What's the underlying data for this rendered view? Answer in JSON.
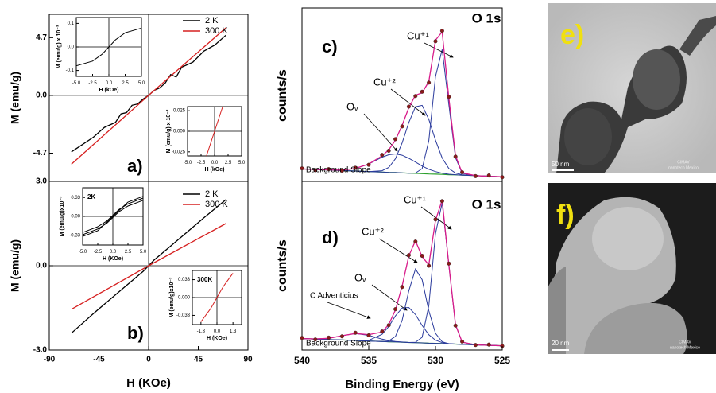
{
  "chart_data": [
    {
      "type": "line",
      "label": "a)",
      "ylabel": "M (emu/g)",
      "xlim": [
        -90,
        90
      ],
      "ylim": [
        -7,
        6.6
      ],
      "yticks": [
        4.7,
        {
          "value": 0,
          "label": "0.0"
        },
        -4.7
      ],
      "legend": "upper right",
      "series": [
        {
          "name": "2 K",
          "color": "#000000",
          "x": [
            -70,
            -60,
            -50,
            -40,
            -30,
            -25,
            -20,
            -15,
            -10,
            -5,
            0,
            5,
            10,
            15,
            20,
            25,
            30,
            40,
            50,
            60,
            70
          ],
          "values": [
            -4.6,
            -4.0,
            -3.4,
            -2.6,
            -2.2,
            -1.5,
            -1.4,
            -0.8,
            -0.7,
            -0.3,
            0,
            0.4,
            0.6,
            1.0,
            1.7,
            1.5,
            2.3,
            2.7,
            3.6,
            4.1,
            4.9
          ]
        },
        {
          "name": "300 K",
          "color": "#d62020",
          "x": [
            -70,
            0,
            70
          ],
          "values": [
            -5.6,
            0,
            5.5
          ]
        }
      ]
    },
    {
      "type": "line",
      "label": "b)",
      "ylabel": "M (emu/g)",
      "xlabel": "H (KOe)",
      "xlim": [
        -90,
        90
      ],
      "ylim": [
        -3,
        3
      ],
      "xticks": [
        -90,
        -45,
        0,
        45,
        90
      ],
      "yticks": [
        {
          "value": 3,
          "label": "3.0"
        },
        {
          "value": 0,
          "label": "0.0"
        },
        {
          "value": -3,
          "label": "-3.0"
        }
      ],
      "legend": "upper right",
      "series": [
        {
          "name": "2 K",
          "color": "#000000",
          "x": [
            -70,
            -50,
            -20,
            -5,
            0,
            5,
            20,
            50,
            70
          ],
          "values": [
            -2.4,
            -1.7,
            -0.7,
            -0.2,
            0,
            0.2,
            0.7,
            1.7,
            2.35
          ]
        },
        {
          "name": "300 K",
          "color": "#d62020",
          "x": [
            -70,
            0,
            70
          ],
          "values": [
            -1.55,
            0,
            1.5
          ]
        }
      ]
    },
    {
      "type": "xps",
      "label": "c)",
      "peak": "O 1s",
      "ylabel": "counts/s",
      "xlim": [
        540,
        525
      ],
      "ylim": [
        0,
        112
      ],
      "x": [
        540,
        539,
        538,
        537,
        536,
        535,
        534,
        533.5,
        533,
        532.5,
        532,
        531.5,
        531,
        530.5,
        530,
        529.5,
        529,
        528.5,
        528,
        527,
        526,
        525
      ],
      "measured": {
        "color": "#8b1a1a",
        "values": [
          8.4,
          7.2,
          7.9,
          6.9,
          8.8,
          10.7,
          17.1,
          19.8,
          27.3,
          35.5,
          48.3,
          55.1,
          57.9,
          63.8,
          90.5,
          97.2,
          54.6,
          16.0,
          5.9,
          3.4,
          3.8,
          2.7
        ]
      },
      "fit_color": "#d81b8a",
      "background": {
        "label": "Background Slope",
        "color": "#2ca02c",
        "values": [
          8.0,
          7.7,
          7.3,
          7.0,
          6.7,
          6.3,
          6.0,
          5.8,
          5.7,
          5.5,
          5.3,
          5.2,
          5.0,
          4.8,
          4.7,
          4.5,
          4.3,
          4.2,
          4.0,
          3.7,
          3.3,
          3.0
        ]
      },
      "components": [
        {
          "label": "Oᵥ",
          "color": "#2a3a9c",
          "values": [
            0,
            0,
            0.1,
            0.3,
            1.6,
            4.9,
            9.6,
            11.4,
            12,
            11.4,
            9.6,
            7.3,
            4.9,
            3.0,
            1.6,
            0.8,
            0.3,
            0.1,
            0,
            0,
            0,
            0
          ]
        },
        {
          "label": "Cu⁺²",
          "color": "#2a3a9c",
          "values": [
            0,
            0,
            0,
            0,
            0,
            0,
            0.9,
            3.2,
            8.9,
            19.3,
            32.7,
            43.0,
            44.1,
            35.2,
            21.9,
            10.6,
            4.0,
            1.2,
            0.3,
            0,
            0,
            0
          ]
        },
        {
          "label": "Cu⁺¹",
          "color": "#2a3a9c",
          "values": [
            0,
            0,
            0,
            0,
            0,
            0,
            0,
            0,
            0,
            0,
            0,
            0.2,
            3.2,
            21.5,
            63.0,
            80.7,
            45.3,
            11.1,
            1.2,
            0,
            0,
            0
          ]
        }
      ]
    },
    {
      "type": "xps",
      "label": "d)",
      "peak": "O 1s",
      "ylabel": "counts/s",
      "xlabel": "Binding Energy (eV)",
      "xlim": [
        540,
        525
      ],
      "ylim": [
        0,
        118
      ],
      "xticks": [
        540,
        535,
        530,
        525
      ],
      "x": [
        540,
        539,
        538,
        537,
        536,
        535,
        534,
        533.5,
        533,
        532.5,
        532,
        531.5,
        531,
        530.5,
        530,
        529.5,
        529,
        528.5,
        528,
        527,
        526,
        525
      ],
      "measured": {
        "color": "#8b1a1a",
        "values": [
          8.5,
          7.4,
          8.7,
          9.6,
          12.1,
          10.3,
          13.0,
          17.4,
          28.6,
          44.1,
          66.4,
          75.9,
          65.9,
          59.0,
          91.4,
          104.2,
          60.5,
          17.1,
          5.9,
          3.5,
          3.8,
          2.8
        ]
      },
      "fit_color": "#d81b8a",
      "background": {
        "label": "Background Slope",
        "color": "#2ca02c",
        "values": [
          8.0,
          7.7,
          7.3,
          7.0,
          6.7,
          6.3,
          6.0,
          5.8,
          5.7,
          5.5,
          5.3,
          5.2,
          5.0,
          4.8,
          4.7,
          4.5,
          4.3,
          4.2,
          4.0,
          3.7,
          3.3,
          3.0
        ]
      },
      "components": [
        {
          "label": "C Adventicius",
          "color": "#2a3a9c",
          "values": [
            0,
            0.1,
            0.9,
            3.0,
            4.9,
            4.0,
            1.6,
            0.8,
            0.3,
            0.1,
            0,
            0,
            0,
            0,
            0,
            0,
            0,
            0,
            0,
            0,
            0,
            0
          ]
        },
        {
          "label": "Oᵥ",
          "color": "#2a3a9c",
          "values": [
            0,
            0,
            0,
            0,
            0,
            0.5,
            5.0,
            10.7,
            18.2,
            23.9,
            24.5,
            19.6,
            12.2,
            5.9,
            2.2,
            0.7,
            0.2,
            0,
            0,
            0,
            0,
            0
          ]
        },
        {
          "label": "Cu⁺²",
          "color": "#2a3a9c",
          "values": [
            0,
            0,
            0,
            0,
            0,
            0,
            0,
            0.6,
            3.8,
            15.2,
            36.0,
            51.5,
            44.2,
            22.7,
            7.0,
            1.3,
            0.1,
            0,
            0,
            0,
            0,
            0
          ]
        },
        {
          "label": "Cu⁺¹",
          "color": "#2a3a9c",
          "values": [
            0,
            0,
            0,
            0,
            0,
            0,
            0,
            0,
            0,
            0,
            0,
            0.2,
            3.9,
            26.2,
            76.8,
            98.4,
            55.2,
            13.5,
            1.5,
            0,
            0,
            0
          ]
        }
      ]
    },
    {
      "type": "line",
      "ylabel": "M (emu/g) x 10⁻³",
      "xlabel": "H (kOe)",
      "xlim": [
        -5,
        5
      ],
      "ylim": [
        -0.125,
        0.125
      ],
      "xticks": [
        {
          "value": -5,
          "label": "-5.0"
        },
        -2.5,
        {
          "value": 0,
          "label": "0.0"
        },
        2.5,
        {
          "value": 5,
          "label": "5.0"
        }
      ],
      "yticks": [
        0.1,
        {
          "value": 0,
          "label": "0.0"
        },
        -0.1
      ],
      "series": [
        {
          "color": "#000000",
          "x": [
            -5,
            -2.5,
            -1,
            0,
            1,
            2.5,
            5
          ],
          "values": [
            -0.08,
            -0.06,
            -0.03,
            0,
            0.03,
            0.06,
            0.08
          ]
        }
      ]
    },
    {
      "type": "line",
      "ylabel": "M (emu/g) x 10⁻³",
      "xlabel": "H (kOe)",
      "xlim": [
        -5,
        5
      ],
      "ylim": [
        -0.03,
        0.03
      ],
      "xticks": [
        {
          "value": -5,
          "label": "-5.0"
        },
        -2.5,
        {
          "value": 0,
          "label": "0.0"
        },
        2.5,
        {
          "value": 5,
          "label": "5.0"
        }
      ],
      "yticks": [
        0.025,
        {
          "value": 0,
          "label": "0.000"
        },
        -0.025
      ],
      "series": [
        {
          "color": "#d62020",
          "x": [
            -1.5,
            0,
            1.5
          ],
          "values": [
            -0.03,
            0,
            0.03
          ]
        }
      ]
    },
    {
      "type": "line",
      "annotation": "2K",
      "ylabel": "M (emu/g)x10⁻³",
      "xlabel": "H (KOe)",
      "xlim": [
        -5,
        5
      ],
      "ylim": [
        -0.5,
        0.5
      ],
      "xticks": [
        {
          "value": -5,
          "label": "-5.0"
        },
        -2.5,
        {
          "value": 0,
          "label": "0.0"
        },
        2.5,
        {
          "value": 5,
          "label": "5.0"
        }
      ],
      "yticks": [
        0.33,
        {
          "value": 0,
          "label": "0.00"
        },
        -0.33
      ],
      "series": [
        {
          "color": "#000000",
          "x": [
            -5,
            -2.5,
            -1,
            0,
            1,
            2.5,
            5
          ],
          "values": [
            -0.28,
            -0.18,
            -0.08,
            0.02,
            0.12,
            0.22,
            0.32
          ]
        },
        {
          "color": "#000000",
          "x": [
            -5,
            -2.5,
            -1,
            0,
            1,
            2.5,
            5
          ],
          "values": [
            -0.32,
            -0.22,
            -0.12,
            -0.02,
            0.08,
            0.18,
            0.28
          ]
        },
        {
          "color": "#000000",
          "x": [
            -5,
            -2.5,
            -1,
            0,
            1,
            2.5,
            5
          ],
          "values": [
            -0.35,
            -0.25,
            -0.1,
            0,
            0.1,
            0.25,
            0.35
          ]
        }
      ]
    },
    {
      "type": "line",
      "annotation": "300K",
      "ylabel": "M (emu/g)x10⁻³",
      "xlabel": "H (KOe)",
      "xlim": [
        -2,
        2
      ],
      "ylim": [
        -0.05,
        0.05
      ],
      "xticks": [
        -1.3,
        {
          "value": 0,
          "label": "0.0"
        },
        1.3
      ],
      "yticks": [
        0.033,
        {
          "value": 0,
          "label": "0.000"
        },
        -0.033
      ],
      "series": [
        {
          "color": "#d62020",
          "x": [
            -1.3,
            -0.5,
            0,
            0.5,
            1.3
          ],
          "values": [
            -0.045,
            -0.02,
            0,
            0.02,
            0.045
          ]
        }
      ]
    }
  ],
  "images": [
    {
      "label": "e)",
      "scale_bar": "50 nm",
      "credit": [
        "CIMAV",
        "nanotech Mexico"
      ]
    },
    {
      "label": "f)",
      "scale_bar": "20 nm",
      "credit": [
        "CIMAV",
        "nanotech Mexico"
      ]
    }
  ]
}
